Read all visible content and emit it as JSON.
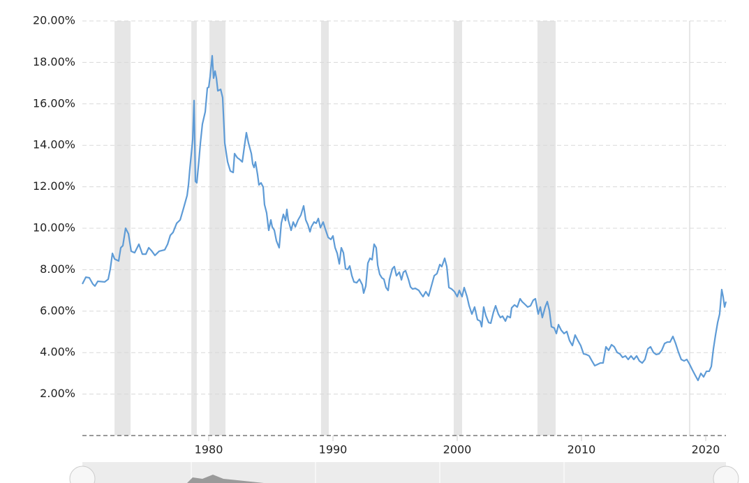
{
  "chart_data": {
    "type": "line",
    "color": "#5e9bd6",
    "grid": true,
    "xlim": [
      1969.83,
      2021.63
    ],
    "xticks": [
      1980,
      1990,
      2000,
      2010,
      2020
    ],
    "ylim": [
      0,
      20
    ],
    "yticks": [
      {
        "value": 2,
        "label": "2.00%"
      },
      {
        "value": 4,
        "label": "4.00%"
      },
      {
        "value": 6,
        "label": "6.00%"
      },
      {
        "value": 8,
        "label": "8.00%"
      },
      {
        "value": 10,
        "label": "10.00%"
      },
      {
        "value": 12,
        "label": "12.00%"
      },
      {
        "value": 14,
        "label": "14.00%"
      },
      {
        "value": 16,
        "label": "16.00%"
      },
      {
        "value": 18,
        "label": "18.00%"
      },
      {
        "value": 20,
        "label": "20.00%"
      }
    ],
    "shaded_ranges": [
      [
        1972.42,
        1973.71
      ],
      [
        1978.6,
        1979.04
      ],
      [
        1980.06,
        1981.35
      ],
      [
        1989.04,
        1989.66
      ],
      [
        1999.72,
        2000.39
      ],
      [
        2006.46,
        2007.92
      ],
      [
        2018.65,
        2018.76
      ]
    ],
    "x": [
      1969.83,
      1970.11,
      1970.39,
      1970.67,
      1970.84,
      1971.07,
      1971.63,
      1971.91,
      1972.08,
      1972.25,
      1972.42,
      1972.75,
      1972.92,
      1973.09,
      1973.31,
      1973.54,
      1973.76,
      1974.04,
      1974.38,
      1974.66,
      1974.94,
      1975.17,
      1975.39,
      1975.67,
      1976.01,
      1976.46,
      1976.69,
      1976.91,
      1977.13,
      1977.42,
      1977.7,
      1977.98,
      1978.26,
      1978.37,
      1978.48,
      1978.71,
      1978.82,
      1978.93,
      1979.04,
      1979.21,
      1979.33,
      1979.49,
      1979.72,
      1979.89,
      1980.0,
      1980.11,
      1980.28,
      1980.39,
      1980.51,
      1980.62,
      1980.73,
      1980.96,
      1981.12,
      1981.29,
      1981.52,
      1981.74,
      1981.97,
      1982.08,
      1982.3,
      1982.47,
      1982.7,
      1982.87,
      1983.03,
      1983.2,
      1983.43,
      1983.54,
      1983.65,
      1983.76,
      1983.93,
      1984.04,
      1984.21,
      1984.38,
      1984.49,
      1984.66,
      1984.83,
      1985.0,
      1985.11,
      1985.28,
      1985.45,
      1985.67,
      1985.84,
      1986.01,
      1986.18,
      1986.29,
      1986.4,
      1986.63,
      1986.8,
      1986.97,
      1987.19,
      1987.42,
      1987.64,
      1987.81,
      1987.98,
      1988.15,
      1988.26,
      1988.48,
      1988.65,
      1988.82,
      1988.99,
      1989.21,
      1989.38,
      1989.61,
      1989.83,
      1990.0,
      1990.17,
      1990.34,
      1990.51,
      1990.67,
      1990.84,
      1991.01,
      1991.18,
      1991.35,
      1991.52,
      1991.69,
      1991.91,
      1992.13,
      1992.36,
      1992.47,
      1992.64,
      1992.81,
      1992.98,
      1993.15,
      1993.31,
      1993.48,
      1993.6,
      1993.76,
      1993.93,
      1994.1,
      1994.27,
      1994.44,
      1994.55,
      1994.78,
      1994.94,
      1995.11,
      1995.34,
      1995.51,
      1995.67,
      1995.84,
      1996.07,
      1996.24,
      1996.4,
      1996.63,
      1996.91,
      1997.08,
      1997.25,
      1997.47,
      1997.7,
      1997.92,
      1998.15,
      1998.37,
      1998.6,
      1998.76,
      1998.99,
      1999.16,
      1999.33,
      1999.55,
      1999.78,
      2000.0,
      2000.17,
      2000.39,
      2000.56,
      2000.79,
      2000.96,
      2001.18,
      2001.4,
      2001.63,
      2001.85,
      2001.97,
      2002.13,
      2002.3,
      2002.53,
      2002.7,
      2002.92,
      2003.09,
      2003.31,
      2003.48,
      2003.65,
      2003.88,
      2004.04,
      2004.27,
      2004.38,
      2004.61,
      2004.83,
      2005.06,
      2005.22,
      2005.45,
      2005.67,
      2005.9,
      2006.12,
      2006.29,
      2006.52,
      2006.69,
      2006.85,
      2007.08,
      2007.25,
      2007.42,
      2007.58,
      2007.81,
      2007.98,
      2008.15,
      2008.37,
      2008.6,
      2008.82,
      2009.04,
      2009.27,
      2009.49,
      2009.72,
      2009.94,
      2010.17,
      2010.39,
      2010.62,
      2010.84,
      2011.07,
      2011.29,
      2011.52,
      2011.74,
      2011.97,
      2012.19,
      2012.42,
      2012.64,
      2012.87,
      2013.09,
      2013.31,
      2013.54,
      2013.76,
      2013.99,
      2014.21,
      2014.44,
      2014.66,
      2014.89,
      2015.11,
      2015.34,
      2015.56,
      2015.79,
      2016.01,
      2016.24,
      2016.46,
      2016.69,
      2016.91,
      2017.13,
      2017.36,
      2017.58,
      2017.81,
      2018.03,
      2018.26,
      2018.48,
      2018.71,
      2018.93,
      2019.16,
      2019.38,
      2019.61,
      2019.83,
      2020.06,
      2020.28,
      2020.45,
      2020.62,
      2020.79,
      2020.96,
      2021.12,
      2021.29,
      2021.4,
      2021.52,
      2021.63
    ],
    "values": [
      7.31,
      7.64,
      7.61,
      7.31,
      7.21,
      7.44,
      7.41,
      7.54,
      8.05,
      8.79,
      8.52,
      8.42,
      9.06,
      9.16,
      10.0,
      9.73,
      8.89,
      8.82,
      9.23,
      8.75,
      8.75,
      9.06,
      8.92,
      8.69,
      8.89,
      8.96,
      9.23,
      9.66,
      9.8,
      10.24,
      10.4,
      10.98,
      11.58,
      12.09,
      12.86,
      14.28,
      16.16,
      12.26,
      12.19,
      13.27,
      14.11,
      15.02,
      15.62,
      16.77,
      16.8,
      17.31,
      18.32,
      17.24,
      17.58,
      17.24,
      16.63,
      16.7,
      16.3,
      14.11,
      13.2,
      12.76,
      12.69,
      13.6,
      13.4,
      13.33,
      13.2,
      13.94,
      14.61,
      14.11,
      13.6,
      13.1,
      12.93,
      13.2,
      12.59,
      12.09,
      12.19,
      11.99,
      11.14,
      10.74,
      9.9,
      10.4,
      10.07,
      9.9,
      9.39,
      9.06,
      10.24,
      10.67,
      10.37,
      10.91,
      10.4,
      9.9,
      10.3,
      10.07,
      10.4,
      10.64,
      11.08,
      10.4,
      10.17,
      9.83,
      10.07,
      10.3,
      10.24,
      10.47,
      10.03,
      10.3,
      9.97,
      9.56,
      9.46,
      9.63,
      9.06,
      8.79,
      8.28,
      9.06,
      8.82,
      8.05,
      8.01,
      8.18,
      7.71,
      7.41,
      7.37,
      7.54,
      7.27,
      6.87,
      7.21,
      8.32,
      8.55,
      8.48,
      9.23,
      9.06,
      8.22,
      7.78,
      7.61,
      7.54,
      7.14,
      7.0,
      7.54,
      8.05,
      8.15,
      7.71,
      7.88,
      7.51,
      7.88,
      7.95,
      7.54,
      7.17,
      7.07,
      7.1,
      7.0,
      6.84,
      6.7,
      6.94,
      6.73,
      7.21,
      7.71,
      7.81,
      8.25,
      8.15,
      8.55,
      8.15,
      7.14,
      7.07,
      6.94,
      6.7,
      7.0,
      6.7,
      7.14,
      6.7,
      6.26,
      5.86,
      6.2,
      5.59,
      5.52,
      5.25,
      6.2,
      5.79,
      5.45,
      5.42,
      5.96,
      6.26,
      5.86,
      5.69,
      5.76,
      5.52,
      5.76,
      5.69,
      6.16,
      6.3,
      6.2,
      6.6,
      6.46,
      6.33,
      6.2,
      6.26,
      6.53,
      6.6,
      5.86,
      6.2,
      5.69,
      6.2,
      6.46,
      6.03,
      5.25,
      5.19,
      4.92,
      5.35,
      5.08,
      4.92,
      5.02,
      4.58,
      4.34,
      4.85,
      4.58,
      4.34,
      3.94,
      3.91,
      3.84,
      3.6,
      3.37,
      3.43,
      3.5,
      3.5,
      4.28,
      4.11,
      4.38,
      4.28,
      4.01,
      3.94,
      3.77,
      3.84,
      3.67,
      3.84,
      3.67,
      3.84,
      3.6,
      3.5,
      3.67,
      4.18,
      4.28,
      4.01,
      3.91,
      3.94,
      4.11,
      4.44,
      4.51,
      4.51,
      4.78,
      4.44,
      4.01,
      3.67,
      3.6,
      3.67,
      3.43,
      3.16,
      2.9,
      2.66,
      3.0,
      2.83,
      3.1,
      3.1,
      3.33,
      4.18,
      4.85,
      5.45,
      5.86,
      7.04,
      6.7,
      6.2,
      6.46
    ]
  }
}
